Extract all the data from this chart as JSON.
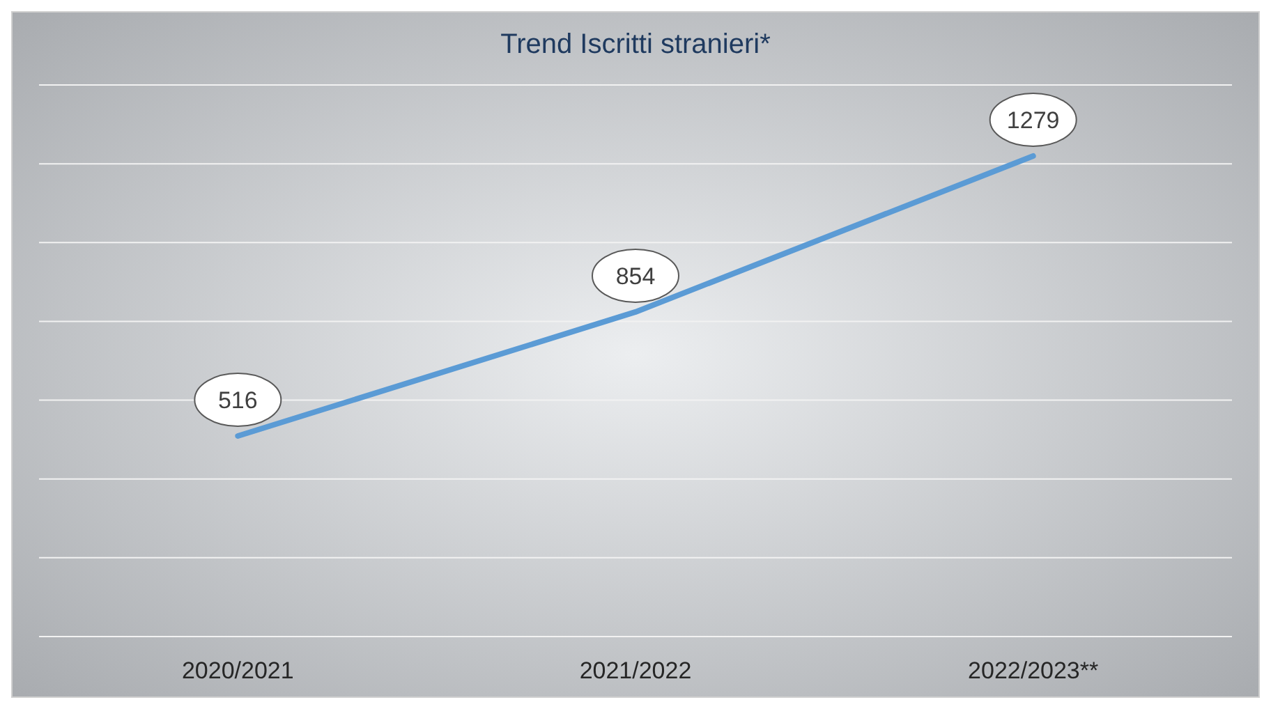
{
  "chart_data": {
    "type": "line",
    "title": "Trend Iscritti stranieri*",
    "categories": [
      "2020/2021",
      "2021/2022",
      "2022/2023**"
    ],
    "series": [
      {
        "color": "#5b9bd5",
        "values": [
          516,
          854,
          1279
        ]
      }
    ],
    "grid": "y",
    "data_labels": true,
    "line_style": "solid"
  }
}
